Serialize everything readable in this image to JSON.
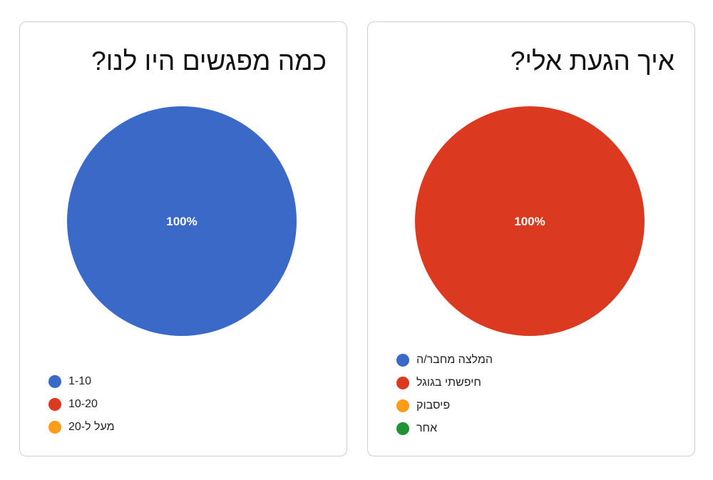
{
  "chart_data": [
    {
      "type": "pie",
      "title": "כמה מפגשים היו לנו?",
      "categories": [
        "1-10",
        "10-20",
        "מעל ל-20"
      ],
      "values": [
        100,
        0,
        0
      ],
      "colors": [
        "#3A69C8",
        "#DC3A20",
        "#FC9C1A"
      ],
      "slice_labels": [
        "100%"
      ],
      "legend": "bottom-left"
    },
    {
      "type": "pie",
      "title": "איך הגעת אלי?",
      "categories": [
        "המלצה מחבר/ה",
        "חיפשתי בגוגל",
        "פיסבוק",
        "אחר"
      ],
      "values": [
        0,
        100,
        0,
        0
      ],
      "colors": [
        "#3A69C8",
        "#DC3A20",
        "#FC9C1A",
        "#1F9234"
      ],
      "slice_labels": [
        "100%"
      ],
      "legend": "bottom-left"
    }
  ]
}
